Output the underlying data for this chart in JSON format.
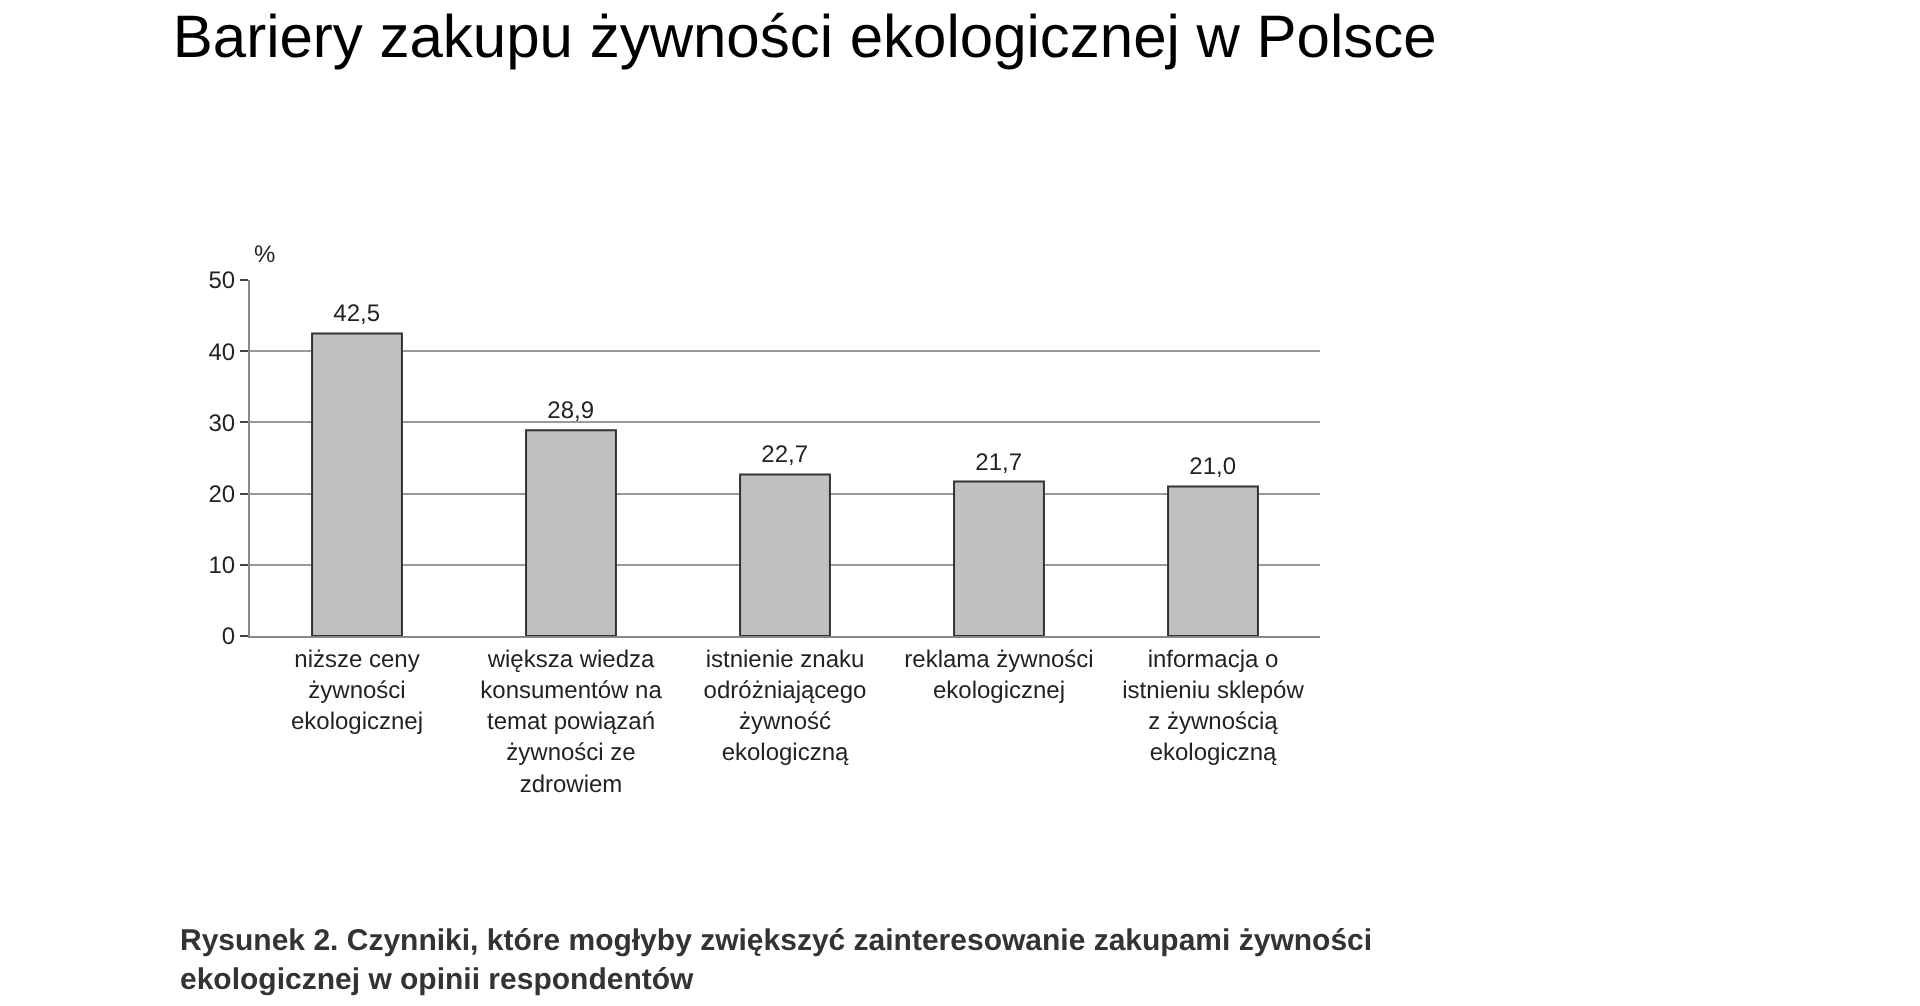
{
  "chart_data": {
    "type": "bar",
    "title": "Bariery zakupu żywności ekologicznej w Polsce",
    "ylabel": "%",
    "categories": [
      "niższe ceny żywności ekologicznej",
      "większa wiedza konsumentów na temat powiązań żywności ze zdrowiem",
      "istnienie znaku odróżniającego żywność ekologiczną",
      "reklama żywności ekologicznej",
      "informacja o istnieniu sklepów z żywnością ekologiczną"
    ],
    "values": [
      42.5,
      28.9,
      22.7,
      21.7,
      21.0
    ],
    "value_labels": [
      "42,5",
      "28,9",
      "22,7",
      "21,7",
      "21,0"
    ],
    "color": "#c0c0c0",
    "ylim": [
      0,
      50
    ],
    "yticks": [
      0,
      10,
      20,
      30,
      40,
      50
    ],
    "grid": "y",
    "legend": false,
    "annotations": [
      "Rysunek 2. Czynniki, które mogłyby zwiększyć zainteresowanie zakupami żywności ekologicznej w opinii respondentów"
    ]
  }
}
